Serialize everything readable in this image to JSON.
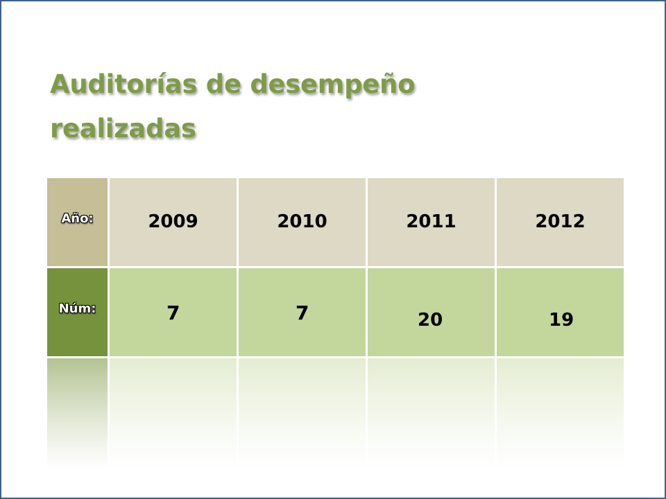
{
  "title": {
    "line1": "Auditorías de desempeño",
    "line2": "realizadas"
  },
  "table": {
    "header_label": "Año:",
    "row_label": "Núm:",
    "years": [
      "2009",
      "2010",
      "2011",
      "2012"
    ],
    "counts": [
      "7",
      "7",
      "20",
      "19"
    ]
  },
  "colors": {
    "title": "#7f9b47",
    "header_label_bg": "#c5be97",
    "year_bg": "#ddd9c4",
    "row_label_bg": "#76923c",
    "count_bg": "#c3d69b",
    "border": "#3d5f8c"
  }
}
